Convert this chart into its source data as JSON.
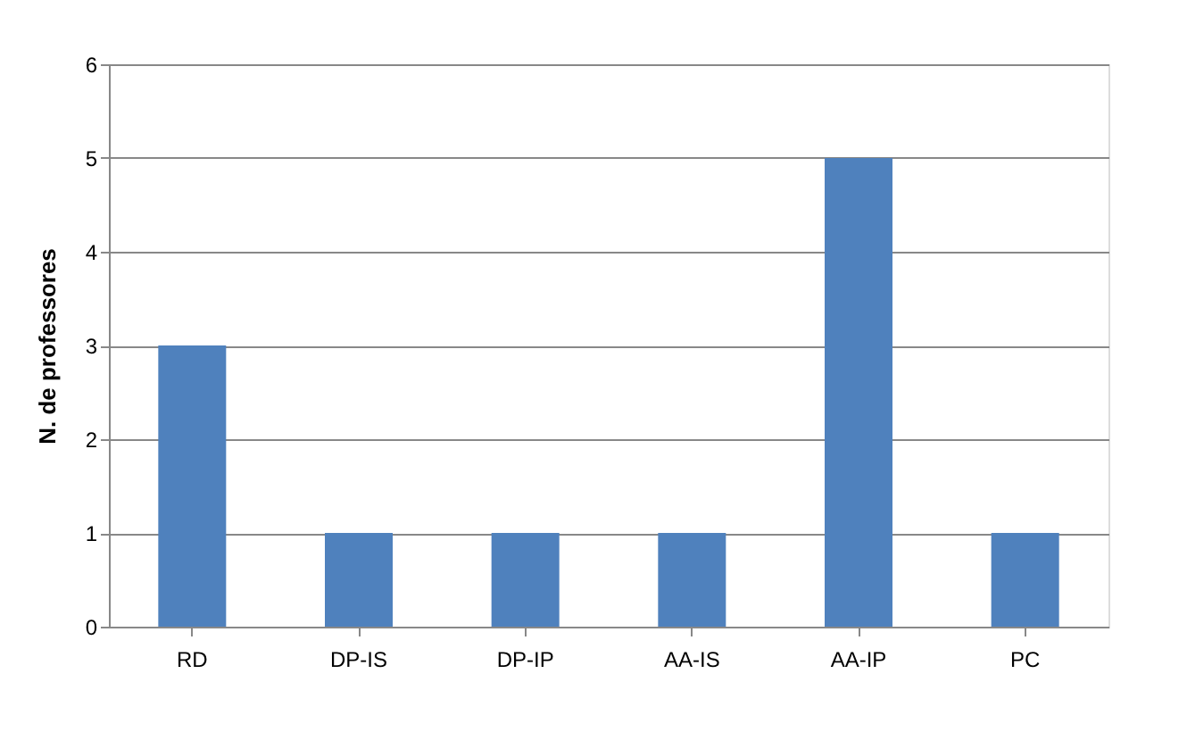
{
  "chart_data": {
    "type": "bar",
    "ylabel": "N. de professores",
    "categories": [
      "RD",
      "DP-IS",
      "DP-IP",
      "AA-IS",
      "AA-IP",
      "PC"
    ],
    "values": [
      3,
      1,
      1,
      1,
      5,
      1
    ],
    "color": "#4f81bd",
    "ylim": [
      0,
      6
    ],
    "yticks": [
      0,
      1,
      2,
      3,
      4,
      5,
      6
    ],
    "grid": "y"
  }
}
